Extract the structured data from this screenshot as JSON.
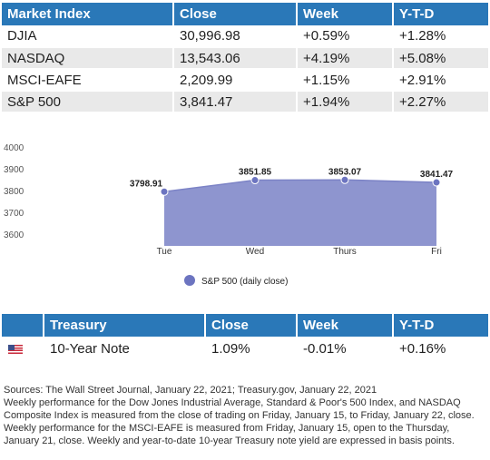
{
  "market_table": {
    "headers": [
      "Market Index",
      "Close",
      "Week",
      "Y-T-D"
    ],
    "rows": [
      [
        "DJIA",
        "30,996.98",
        "+0.59%",
        "+1.28%"
      ],
      [
        "NASDAQ",
        "13,543.06",
        "+4.19%",
        "+5.08%"
      ],
      [
        "MSCI-EAFE",
        "2,209.99",
        "+1.15%",
        "+2.91%"
      ],
      [
        "S&P 500",
        "3,841.47",
        "+1.94%",
        "+2.27%"
      ]
    ]
  },
  "chart_data": {
    "type": "area",
    "categories": [
      "Tue",
      "Wed",
      "Thurs",
      "Fri"
    ],
    "series": [
      {
        "name": "S&P 500 (daily close)",
        "values": [
          3798.91,
          3851.85,
          3853.07,
          3841.47
        ],
        "labels": [
          "3798.91",
          "3851.85",
          "3853.07",
          "3841.47"
        ]
      }
    ],
    "y_ticks": [
      "4000",
      "3900",
      "3800",
      "3700",
      "3600"
    ],
    "ylim": [
      3550,
      4000
    ],
    "grid": false,
    "legend": "bottom-center",
    "color": "#8e95cf",
    "marker_color": "#6c74c0"
  },
  "treasury_table": {
    "headers": [
      "",
      "Treasury",
      "Close",
      "Week",
      "Y-T-D"
    ],
    "rows": [
      {
        "icon": "us-flag-icon",
        "name": "10-Year Note",
        "close": "1.09%",
        "week": "-0.01%",
        "ytd": "+0.16%"
      }
    ]
  },
  "notes": [
    "Sources: The Wall Street Journal, January 22, 2021; Treasury.gov, January 22, 2021",
    "Weekly performance for the Dow Jones Industrial Average, Standard & Poor's 500 Index, and NASDAQ Composite Index is measured from the close of trading on Friday, January 15, to Friday, January 22, close. Weekly performance for the MSCI-EAFE is measured from Friday, January 15, open to the Thursday, January 21, close. Weekly and year-to-date 10-year Treasury note yield are expressed in basis points."
  ]
}
